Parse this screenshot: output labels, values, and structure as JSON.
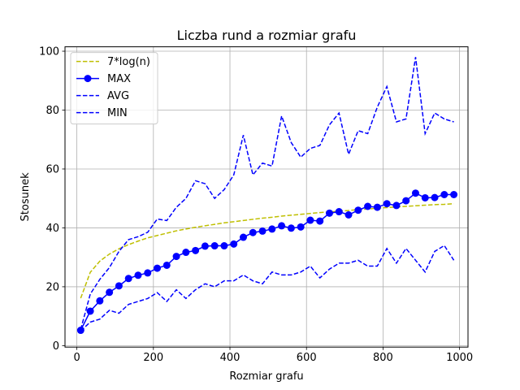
{
  "chart_data": {
    "type": "line",
    "title": "Liczba rund a rozmiar grafu",
    "xlabel": "Rozmiar grafu",
    "ylabel": "Stosunek",
    "xlim": [
      -31,
      1022
    ],
    "ylim": [
      -0.5,
      101.5
    ],
    "xticks": [
      0,
      200,
      400,
      600,
      800,
      1000
    ],
    "yticks": [
      0,
      20,
      40,
      60,
      80,
      100
    ],
    "grid": true,
    "legend_position": "top-left",
    "x": [
      10,
      35,
      60,
      85,
      110,
      135,
      160,
      185,
      210,
      235,
      260,
      285,
      310,
      335,
      360,
      385,
      410,
      435,
      460,
      485,
      510,
      535,
      560,
      585,
      610,
      635,
      660,
      685,
      710,
      735,
      760,
      785,
      810,
      835,
      860,
      885,
      910,
      935,
      960,
      985
    ],
    "series": [
      {
        "name": "7*log(n)",
        "color": "#bfbf00",
        "style": "dashed",
        "marker": "none",
        "values": [
          16.1,
          24.9,
          28.7,
          31.1,
          32.9,
          34.3,
          35.5,
          36.6,
          37.4,
          38.2,
          39.0,
          39.6,
          40.2,
          40.7,
          41.2,
          41.7,
          42.1,
          42.5,
          42.9,
          43.3,
          43.6,
          44.0,
          44.3,
          44.6,
          44.9,
          45.2,
          45.4,
          45.7,
          45.9,
          46.2,
          46.4,
          46.7,
          46.9,
          47.1,
          47.3,
          47.5,
          47.7,
          47.9,
          48.0,
          48.2
        ]
      },
      {
        "name": "MAX",
        "color": "#0000ff",
        "style": "solid",
        "marker": "circle",
        "values": [
          5.2,
          11.7,
          15.2,
          18.1,
          20.3,
          22.8,
          23.9,
          24.7,
          26.3,
          27.3,
          30.3,
          31.7,
          32.3,
          33.8,
          33.9,
          33.9,
          34.5,
          36.8,
          38.4,
          38.9,
          39.6,
          40.7,
          39.9,
          40.3,
          42.6,
          42.3,
          45.0,
          45.5,
          44.4,
          46.0,
          47.3,
          47.0,
          48.2,
          47.6,
          49.2,
          51.8,
          50.2,
          50.3,
          51.3,
          51.3
        ]
      },
      {
        "name": "AVG",
        "color": "#0000ff",
        "style": "dashed",
        "marker": "none",
        "values": [
          5.5,
          17.5,
          22.5,
          26.5,
          32.0,
          36.0,
          37.0,
          38.5,
          43.0,
          42.5,
          47.0,
          50.0,
          56.0,
          55.0,
          50.0,
          53.0,
          58.0,
          71.5,
          58.0,
          62.0,
          61.0,
          78.0,
          69.0,
          64.0,
          67.0,
          68.0,
          75.0,
          79.0,
          65.0,
          73.0,
          72.0,
          81.0,
          88.0,
          76.0,
          77.0,
          98.0,
          72.0,
          79.0,
          77.0,
          76.0
        ]
      },
      {
        "name": "MIN",
        "color": "#0000ff",
        "style": "dashed",
        "marker": "none",
        "values": [
          5.0,
          8.0,
          9.0,
          12.0,
          11.0,
          14.0,
          15.0,
          16.0,
          18.0,
          15.0,
          19.0,
          16.0,
          19.0,
          21.0,
          20.0,
          22.0,
          22.0,
          24.0,
          22.0,
          21.0,
          25.0,
          24.0,
          24.0,
          25.0,
          27.0,
          23.0,
          26.0,
          28.0,
          28.0,
          29.0,
          27.0,
          27.0,
          33.0,
          28.0,
          33.0,
          29.0,
          25.0,
          32.0,
          34.0,
          29.0
        ]
      }
    ]
  }
}
